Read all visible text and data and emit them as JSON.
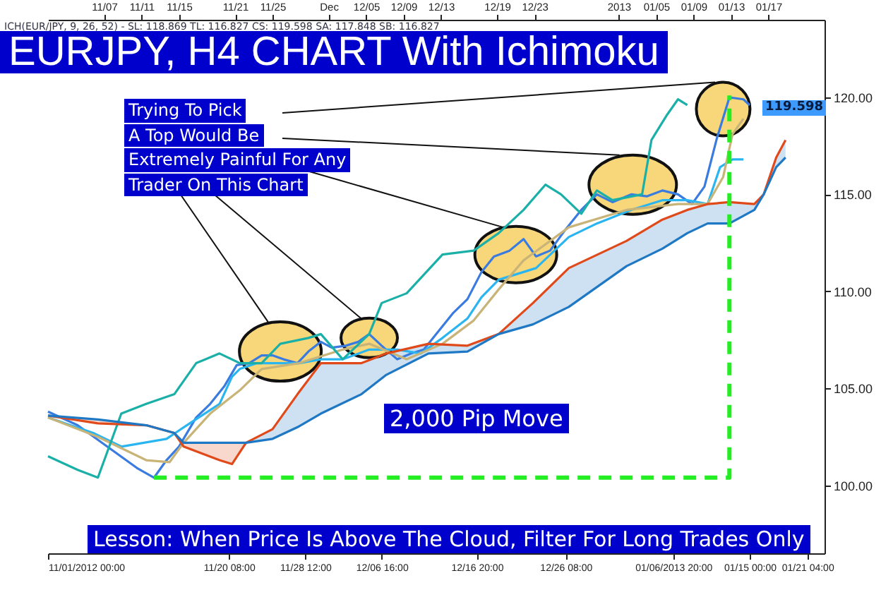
{
  "chart_data": {
    "type": "line",
    "title": "EURJPY, H4 CHART With Ichimoku",
    "subtitle": "ICH(EUR/JPY, 9, 26, 52) - SL: 118.869 TL: 116.827 CS: 119.598 SA: 117.848 SB: 116.827",
    "xlim": [
      "2012-11-01T00:00",
      "2013-01-23T00:00"
    ],
    "xticks": [
      {
        "value": "2012-11-01T00:00",
        "label": "11/01/2012 00:00"
      },
      {
        "value": "2012-11-20T08:00",
        "label": "11/20 08:00"
      },
      {
        "value": "2012-11-28T12:00",
        "label": "11/28 12:00"
      },
      {
        "value": "2012-12-06T16:00",
        "label": "12/06 16:00"
      },
      {
        "value": "2012-12-16T20:00",
        "label": "12/16 20:00"
      },
      {
        "value": "2012-12-26T08:00",
        "label": "12/26 08:00"
      },
      {
        "value": "2013-01-06T20:00",
        "label": "01/06/2013 20:00"
      },
      {
        "value": "2013-01-15T00:00",
        "label": "01/15 00:00"
      },
      {
        "value": "2013-01-21T04:00",
        "label": "01/21 04:00"
      }
    ],
    "x2lim": [
      "2012-11-01T00:00",
      "2013-01-23T00:00"
    ],
    "x2ticks": [
      {
        "value": "2012-11-07",
        "label": "11/07"
      },
      {
        "value": "2012-11-11",
        "label": "11/11"
      },
      {
        "value": "2012-11-15",
        "label": "11/15"
      },
      {
        "value": "2012-11-21",
        "label": "11/21"
      },
      {
        "value": "2012-11-25",
        "label": "11/25"
      },
      {
        "value": "2012-12-01",
        "label": "Dec"
      },
      {
        "value": "2012-12-05",
        "label": "12/05"
      },
      {
        "value": "2012-12-09",
        "label": "12/09"
      },
      {
        "value": "2012-12-13",
        "label": "12/13"
      },
      {
        "value": "2012-12-19",
        "label": "12/19"
      },
      {
        "value": "2012-12-23",
        "label": "12/23"
      },
      {
        "value": "2013-01-01",
        "label": "2013"
      },
      {
        "value": "2013-01-05",
        "label": "01/05"
      },
      {
        "value": "2013-01-09",
        "label": "01/09"
      },
      {
        "value": "2013-01-13",
        "label": "01/13"
      },
      {
        "value": "2013-01-17",
        "label": "01/17"
      }
    ],
    "ylim": [
      96.5,
      124.0
    ],
    "yticks": [
      {
        "value": 100,
        "label": "100.00"
      },
      {
        "value": 105,
        "label": "105.00"
      },
      {
        "value": 110,
        "label": "110.00"
      },
      {
        "value": 115,
        "label": "115.00"
      },
      {
        "value": 120,
        "label": "120.00"
      }
    ],
    "grid": false,
    "marker": "none",
    "line_style": "solid",
    "series": [
      {
        "color": "#3a7be0",
        "x": [
          "2012-11-01T00:00",
          "2012-11-04T04:00",
          "2012-11-07T08:00",
          "2012-11-10T12:00",
          "2012-11-12T08:00",
          "2012-11-13T16:00",
          "2012-11-15T00:00",
          "2012-11-16T20:00",
          "2012-11-18T08:00",
          "2012-11-19T20:00",
          "2012-11-21T04:00",
          "2012-11-22T12:00",
          "2012-11-23T20:00",
          "2012-11-25T00:00",
          "2012-11-26T04:00",
          "2012-11-27T16:00",
          "2012-11-28T20:00",
          "2012-11-30T04:00",
          "2012-12-01T08:00",
          "2012-12-02T20:00",
          "2012-12-04T04:00",
          "2012-12-05T08:00",
          "2012-12-06T16:00",
          "2012-12-08T08:00",
          "2012-12-09T20:00",
          "2012-12-11T04:00",
          "2012-12-14T08:00",
          "2012-12-15T20:00",
          "2012-12-17T08:00",
          "2012-12-18T16:00",
          "2012-12-20T08:00",
          "2012-12-21T20:00",
          "2012-12-23T04:00",
          "2012-12-24T16:00",
          "2012-12-26T08:00",
          "2012-12-28T00:00",
          "2012-12-29T16:00",
          "2012-12-31T08:00",
          "2013-01-02T08:00",
          "2013-01-04T00:00",
          "2013-01-05T16:00",
          "2013-01-07T08:00",
          "2013-01-08T20:00",
          "2013-01-10T04:00",
          "2013-01-11T12:00",
          "2013-01-12T20:00",
          "2013-01-14T08:00",
          "2013-01-15T00:00"
        ],
        "values": [
          103.8,
          103.1,
          102.0,
          100.9,
          100.4,
          101.3,
          102.0,
          103.5,
          104.2,
          105.1,
          106.2,
          106.3,
          106.7,
          106.7,
          106.5,
          106.3,
          106.9,
          107.4,
          107.1,
          107.2,
          107.4,
          107.8,
          107.2,
          106.5,
          106.8,
          107.0,
          108.9,
          109.6,
          111.0,
          111.8,
          112.1,
          112.7,
          111.8,
          112.1,
          113.2,
          114.2,
          115.0,
          114.6,
          115.0,
          114.9,
          115.2,
          115.0,
          114.5,
          115.4,
          117.9,
          120.0,
          119.9,
          119.6
        ]
      },
      {
        "color": "#2bb5f0",
        "x": [
          "2012-11-01T00:00",
          "2012-11-05T20:00",
          "2012-11-08T20:00",
          "2012-11-13T16:00",
          "2012-11-15T20:00",
          "2012-11-19T08:00",
          "2012-11-20T16:00",
          "2012-11-21T12:00",
          "2012-11-23T08:00",
          "2012-11-27T20:00",
          "2012-11-30T04:00",
          "2012-12-02T12:00",
          "2012-12-05T08:00",
          "2012-12-08T08:00",
          "2012-12-10T20:00",
          "2012-12-13T04:00",
          "2012-12-15T20:00",
          "2012-12-17T08:00",
          "2012-12-19T04:00",
          "2012-12-23T04:00",
          "2012-12-26T16:00",
          "2012-12-29T16:00",
          "2013-01-02T08:00",
          "2013-01-05T16:00",
          "2013-01-08T08:00",
          "2013-01-10T12:00",
          "2013-01-11T20:00",
          "2013-01-13T04:00",
          "2013-01-14T08:00"
        ],
        "values": [
          103.5,
          102.7,
          102.0,
          102.4,
          103.1,
          104.2,
          105.6,
          106.0,
          106.3,
          106.3,
          106.5,
          106.5,
          107.0,
          107.0,
          106.8,
          107.6,
          108.6,
          109.7,
          110.6,
          111.2,
          112.8,
          113.5,
          114.2,
          114.7,
          114.7,
          114.5,
          116.4,
          116.8,
          116.8
        ]
      },
      {
        "color": "#c8b478",
        "x": [
          "2012-11-01T00:00",
          "2012-11-06T08:00",
          "2012-11-11T12:00",
          "2012-11-14T00:00",
          "2012-11-15T12:00",
          "2012-11-18T08:00",
          "2012-11-21T12:00",
          "2012-11-23T20:00",
          "2012-11-27T20:00",
          "2012-12-02T12:00",
          "2012-12-05T08:00",
          "2012-12-09T08:00",
          "2012-12-13T04:00",
          "2012-12-16T12:00",
          "2012-12-19T04:00",
          "2012-12-21T20:00",
          "2012-12-26T16:00",
          "2013-01-01T20:00",
          "2013-01-07T08:00",
          "2013-01-10T12:00",
          "2013-01-12T04:00",
          "2013-01-13T04:00",
          "2013-01-14T08:00"
        ],
        "values": [
          103.5,
          102.5,
          101.3,
          101.2,
          102.2,
          103.7,
          104.9,
          106.0,
          106.3,
          107.0,
          107.3,
          106.5,
          107.3,
          108.5,
          110.1,
          111.6,
          113.3,
          114.2,
          114.5,
          114.5,
          115.9,
          118.1,
          118.9
        ]
      },
      {
        "color": "#1ab0a8",
        "x": [
          "2012-11-01T00:00",
          "2012-11-04T04:00",
          "2012-11-06T08:00",
          "2012-11-08T20:00",
          "2012-11-11T12:00",
          "2012-11-14T12:00",
          "2012-11-16T20:00",
          "2012-11-19T08:00",
          "2012-11-21T12:00",
          "2012-11-23T20:00",
          "2012-11-25T20:00",
          "2012-11-28T20:00",
          "2012-11-30T04:00",
          "2012-12-02T12:00",
          "2012-12-05T08:00",
          "2012-12-06T16:00",
          "2012-12-09T08:00",
          "2012-12-13T04:00",
          "2012-12-16T12:00",
          "2012-12-19T04:00",
          "2012-12-21T20:00",
          "2012-12-24T04:00",
          "2012-12-25T20:00",
          "2012-12-28T00:00",
          "2012-12-29T16:00",
          "2012-12-31T08:00",
          "2013-01-03T12:00",
          "2013-01-04T12:00",
          "2013-01-06T04:00",
          "2013-01-07T08:00",
          "2013-01-08T08:00"
        ],
        "values": [
          101.5,
          100.8,
          100.4,
          103.7,
          104.2,
          104.7,
          106.3,
          106.8,
          106.3,
          106.3,
          107.3,
          107.6,
          107.8,
          106.5,
          107.8,
          109.4,
          109.9,
          111.9,
          112.1,
          113.0,
          114.2,
          115.5,
          115.0,
          114.0,
          115.2,
          114.7,
          115.0,
          117.8,
          119.1,
          119.9,
          119.6
        ]
      },
      {
        "color": "#e04a1a",
        "x": [
          "2012-11-01T00:00",
          "2012-11-06T08:00",
          "2012-11-11T12:00",
          "2012-11-14T12:00",
          "2012-11-15T12:00",
          "2012-11-19T08:00",
          "2012-11-20T16:00",
          "2012-11-22T04:00",
          "2012-11-25T00:00",
          "2012-11-27T16:00",
          "2012-11-30T04:00",
          "2012-12-04T12:00",
          "2012-12-07T04:00",
          "2012-12-11T16:00",
          "2012-12-15T20:00",
          "2012-12-19T04:00",
          "2012-12-22T20:00",
          "2012-12-26T16:00",
          "2013-01-01T20:00",
          "2013-01-05T16:00",
          "2013-01-08T08:00",
          "2013-01-10T12:00",
          "2013-01-12T20:00",
          "2013-01-15T12:00",
          "2013-01-16T12:00",
          "2013-01-17T20:00",
          "2013-01-18T20:00"
        ],
        "values": [
          103.6,
          103.2,
          103.1,
          102.7,
          102.0,
          101.3,
          101.1,
          102.2,
          102.9,
          104.7,
          106.3,
          106.3,
          106.8,
          107.3,
          107.2,
          107.8,
          109.4,
          111.2,
          112.6,
          113.7,
          114.2,
          114.5,
          114.6,
          114.5,
          115.0,
          116.9,
          117.8
        ],
        "lower": [
          103.6,
          103.2,
          103.1,
          102.7,
          102.0,
          101.3,
          101.1,
          102.2,
          null,
          null,
          null,
          null,
          null,
          null,
          null,
          null,
          null,
          null,
          null,
          null,
          null,
          null,
          null,
          null,
          null,
          null,
          null
        ],
        "upper": [
          103.6,
          103.4,
          103.1,
          102.7,
          102.2,
          102.2,
          102.2,
          102.2,
          null,
          null,
          null,
          null,
          null,
          null,
          null,
          null,
          null,
          null,
          null,
          null,
          null,
          null,
          null,
          null,
          null,
          null,
          null
        ]
      },
      {
        "color": "#1f78c4",
        "x": [
          "2012-11-01T00:00",
          "2012-11-06T08:00",
          "2012-11-11T12:00",
          "2012-11-14T12:00",
          "2012-11-15T12:00",
          "2012-11-19T08:00",
          "2012-11-20T16:00",
          "2012-11-22T04:00",
          "2012-11-25T00:00",
          "2012-11-27T16:00",
          "2012-11-30T04:00",
          "2012-12-04T12:00",
          "2012-12-07T04:00",
          "2012-12-11T16:00",
          "2012-12-15T20:00",
          "2012-12-19T04:00",
          "2012-12-22T20:00",
          "2012-12-26T16:00",
          "2013-01-01T20:00",
          "2013-01-05T16:00",
          "2013-01-08T08:00",
          "2013-01-10T12:00",
          "2013-01-12T20:00",
          "2013-01-15T12:00",
          "2013-01-16T12:00",
          "2013-01-17T20:00",
          "2013-01-18T20:00"
        ],
        "values": [
          103.6,
          103.4,
          103.1,
          102.7,
          102.2,
          102.2,
          102.2,
          102.2,
          102.4,
          103.0,
          103.7,
          104.7,
          105.7,
          106.8,
          106.9,
          107.8,
          108.3,
          109.2,
          111.3,
          112.2,
          113.0,
          113.5,
          113.5,
          114.2,
          115.0,
          116.4,
          116.9
        ],
        "lower": [
          null,
          null,
          null,
          null,
          null,
          null,
          null,
          102.2,
          102.4,
          103.0,
          103.7,
          104.7,
          105.7,
          106.8,
          106.9,
          107.8,
          108.3,
          109.2,
          111.3,
          112.2,
          113.0,
          113.5,
          113.5,
          114.2,
          115.0,
          116.4,
          116.9
        ],
        "upper": [
          null,
          null,
          null,
          null,
          null,
          null,
          null,
          102.2,
          102.9,
          104.7,
          106.3,
          106.3,
          106.8,
          107.3,
          107.2,
          107.8,
          109.4,
          111.2,
          112.6,
          113.7,
          114.2,
          114.5,
          114.6,
          114.5,
          115.0,
          116.9,
          117.8
        ]
      },
      {
        "color": "#22ee22",
        "line_style": "dashed",
        "x": [
          "2012-11-12T08:00",
          "2013-01-12T20:00",
          "2013-01-12T20:00"
        ],
        "values": [
          100.4,
          100.4,
          120.1
        ]
      }
    ],
    "annotations": [
      {
        "text": "Trying To Pick\nA Top Would Be\nExtremely Painful For Any\nTrader On This Chart",
        "x": "2012-12-19T16:00",
        "y": 113.3
      },
      "2,000 Pip Move",
      "Lesson: When Price Is Above The Cloud, Filter For Long Trades Only",
      "119.598"
    ]
  }
}
